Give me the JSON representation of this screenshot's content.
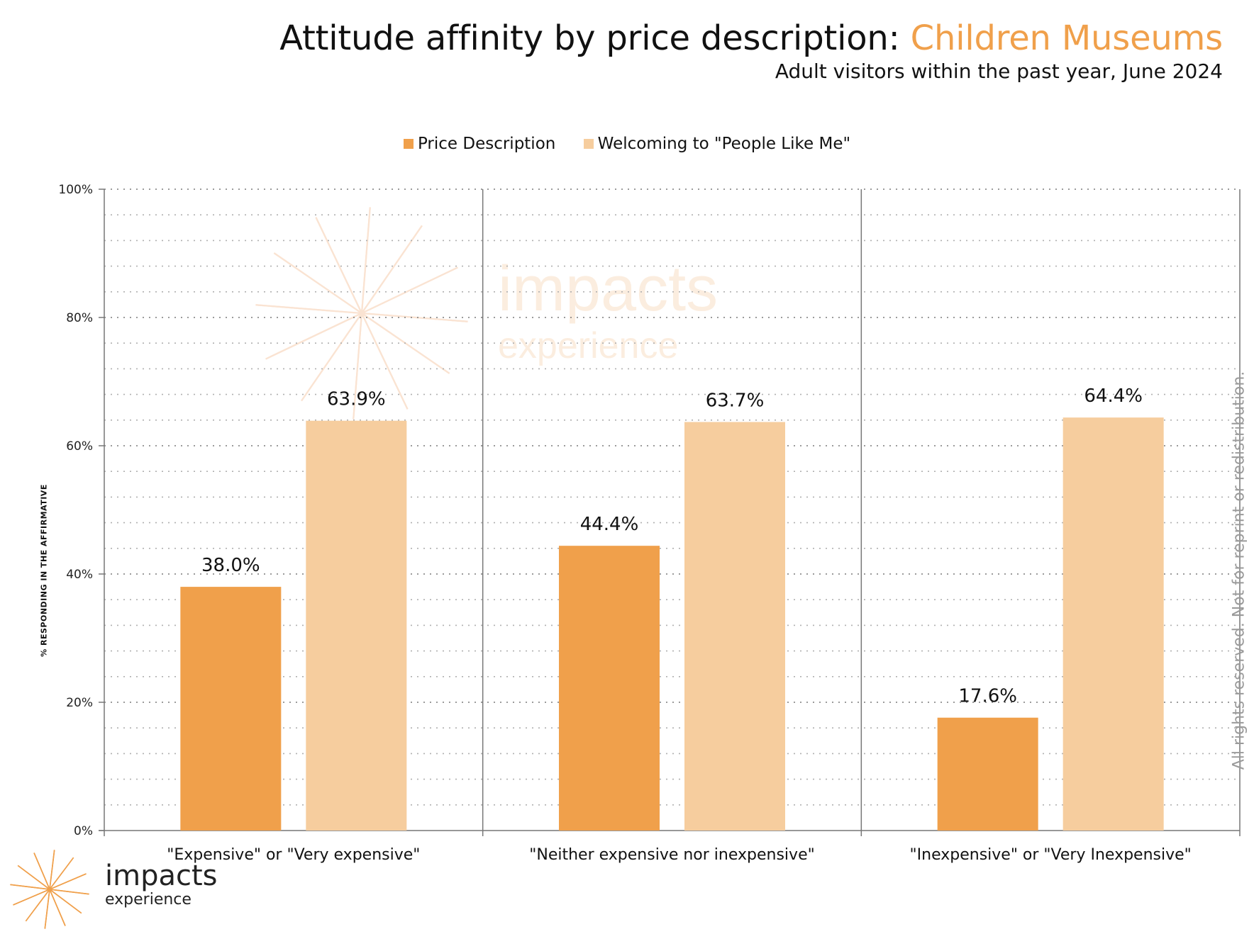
{
  "title": {
    "main": "Attitude affinity by price description: ",
    "accent": "Children Museums",
    "subtitle": "Adult visitors within the past year, June 2024"
  },
  "legend": [
    {
      "label": "Price Description",
      "color": "#f0a04b"
    },
    {
      "label": "Welcoming to \"People Like Me\"",
      "color": "#f6cd9e"
    }
  ],
  "chart_data": {
    "type": "bar",
    "categories": [
      "\"Expensive\" or \"Very expensive\"",
      "\"Neither expensive nor inexpensive\"",
      "\"Inexpensive\" or \"Very Inexpensive\""
    ],
    "series": [
      {
        "name": "Price Description",
        "values": [
          38.0,
          44.4,
          17.6
        ],
        "color": "#f0a04b"
      },
      {
        "name": "Welcoming to \"People Like Me\"",
        "values": [
          63.9,
          63.7,
          64.4
        ],
        "color": "#f6cd9e"
      }
    ],
    "data_labels": [
      [
        "38.0%",
        "44.4%",
        "17.6%"
      ],
      [
        "63.9%",
        "63.7%",
        "64.4%"
      ]
    ],
    "ylabel": "% RESPONDING IN THE AFFIRMATIVE",
    "ylim": [
      0,
      100
    ],
    "yticks": [
      "0%",
      "20%",
      "40%",
      "60%",
      "80%",
      "100%"
    ],
    "grid": true,
    "legend_position": "top-center"
  },
  "watermark": {
    "line1": "impacts",
    "line2": "experience"
  },
  "rights_text": "All rights reserved. Not for reprint or redistribution.",
  "logo": {
    "line1": "impacts",
    "line2": "experience",
    "color": "#f0a04b"
  }
}
